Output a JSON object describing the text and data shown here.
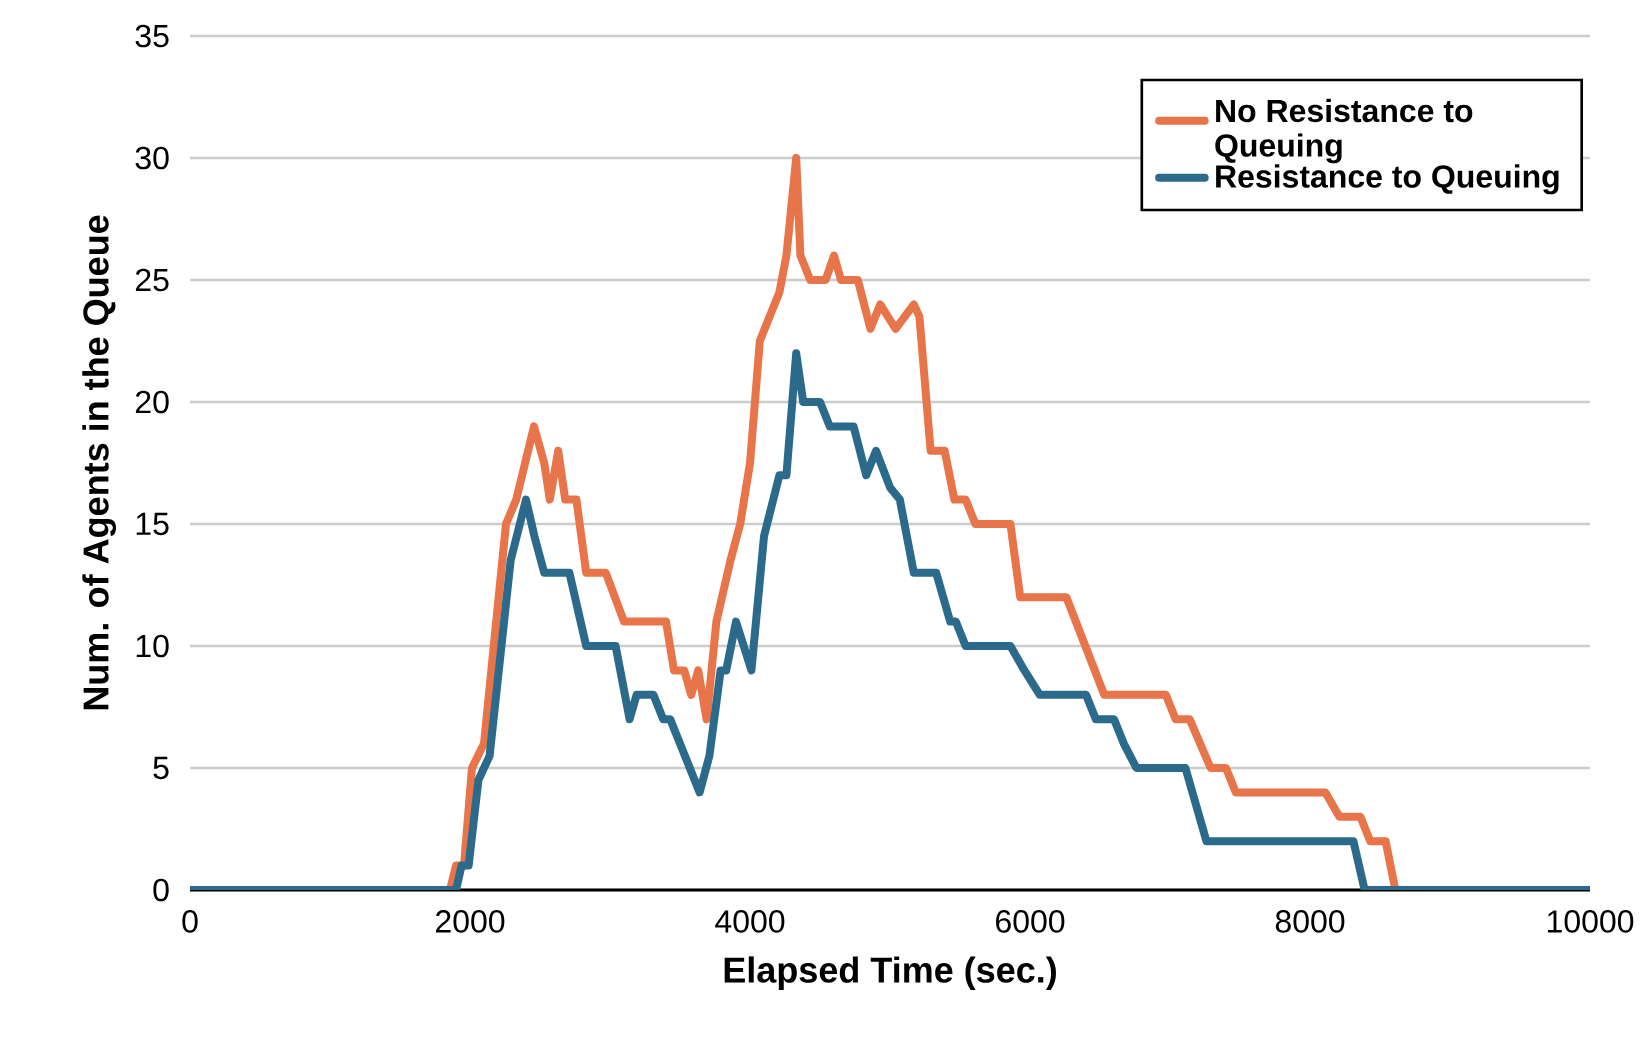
{
  "chart_data": {
    "type": "line",
    "xlabel": "Elapsed Time (sec.)",
    "ylabel": "Num. of Agents in the Queue",
    "xlim": [
      0,
      10000
    ],
    "ylim": [
      0,
      35
    ],
    "xticks": [
      0,
      2000,
      4000,
      6000,
      8000,
      10000
    ],
    "yticks": [
      0,
      5,
      10,
      15,
      20,
      25,
      30,
      35
    ],
    "grid": "y",
    "legend": "top right",
    "marker": "none",
    "line_style": "solid",
    "series": [
      {
        "name": "No Resistance to Queuing",
        "color": "#e8744a",
        "x": [
          0,
          1857,
          1900,
          1957,
          2014,
          2100,
          2257,
          2330,
          2457,
          2530,
          2570,
          2630,
          2680,
          2760,
          2830,
          2970,
          3100,
          3400,
          3457,
          3530,
          3580,
          3630,
          3690,
          3760,
          3860,
          3930,
          4000,
          4070,
          4210,
          4260,
          4330,
          4360,
          4430,
          4540,
          4600,
          4650,
          4770,
          4860,
          4930,
          5040,
          5170,
          5210,
          5290,
          5390,
          5460,
          5540,
          5610,
          5860,
          5930,
          6260,
          6530,
          6970,
          7040,
          7140,
          7290,
          7400,
          7470,
          8110,
          8210,
          8360,
          8430,
          8540,
          8610,
          10000
        ],
        "values": [
          0,
          0,
          1,
          1,
          5,
          6,
          15,
          16,
          19,
          17.5,
          16,
          18,
          16,
          16,
          13,
          13,
          11,
          11,
          9,
          9,
          8,
          9,
          7,
          11,
          13.5,
          15,
          17.5,
          22.5,
          24.5,
          26,
          30,
          26,
          25,
          25,
          26,
          25,
          25,
          23,
          24,
          23,
          24,
          23.5,
          18,
          18,
          16,
          16,
          15,
          15,
          12,
          12,
          8,
          8,
          7,
          7,
          5,
          5,
          4,
          4,
          3,
          3,
          2,
          2,
          0,
          0
        ]
      },
      {
        "name": "Resistance to Queuing",
        "color": "#2b6a8a",
        "x": [
          0,
          1900,
          1940,
          1990,
          2060,
          2140,
          2290,
          2400,
          2460,
          2530,
          2710,
          2830,
          3040,
          3140,
          3190,
          3310,
          3380,
          3430,
          3640,
          3710,
          3790,
          3830,
          3900,
          4010,
          4100,
          4210,
          4260,
          4330,
          4380,
          4500,
          4570,
          4740,
          4830,
          4900,
          5000,
          5070,
          5170,
          5330,
          5430,
          5470,
          5540,
          5860,
          5960,
          6070,
          6400,
          6470,
          6600,
          6670,
          6760,
          7110,
          7260,
          8310,
          8390,
          10000
        ],
        "values": [
          0,
          0,
          1,
          1,
          4.5,
          5.5,
          13.5,
          16,
          14.5,
          13,
          13,
          10,
          10,
          7,
          8,
          8,
          7,
          7,
          4,
          5.5,
          9,
          9,
          11,
          9,
          14.5,
          17,
          17,
          22,
          20,
          20,
          19,
          19,
          17,
          18,
          16.5,
          16,
          13,
          13,
          11,
          11,
          10,
          10,
          9,
          8,
          8,
          7,
          7,
          6,
          5,
          5,
          2,
          2,
          0,
          0
        ]
      }
    ]
  }
}
